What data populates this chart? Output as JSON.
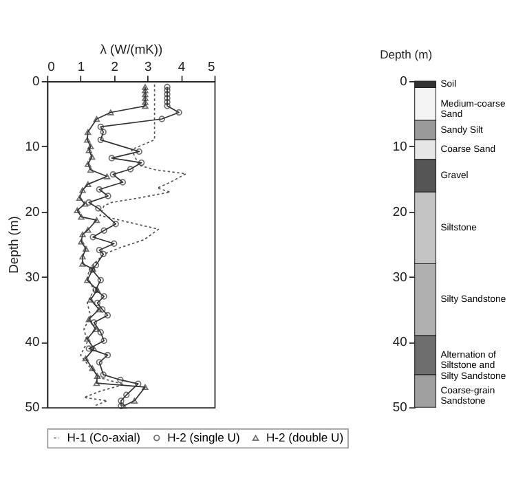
{
  "chart_data": [
    {
      "type": "line",
      "xlabel": "λ (W/(mK))",
      "ylabel": "Depth (m)",
      "xlim": [
        0,
        5
      ],
      "xticks": [
        0,
        1,
        2,
        3,
        4,
        5
      ],
      "ylim": [
        50,
        0
      ],
      "yticks": [
        0,
        10,
        20,
        30,
        40,
        50
      ],
      "grid": false,
      "legend": "bottom",
      "series": [
        {
          "name": "H-1 (Co-axial)",
          "color": "#555555",
          "marker": "none",
          "line_style": "dotted",
          "x": [
            3.21,
            3.21,
            3.21,
            2.52,
            2.75,
            3.24,
            4.15,
            3.68,
            3.29,
            3.68,
            2.75,
            1.93,
            1.7,
            1.58,
            3.33,
            2.9,
            2.2,
            1.7,
            1.3,
            1.2,
            1.4,
            1.2,
            1.3,
            1.1,
            1.2,
            1.0,
            1.3,
            1.6,
            2.3,
            1.6,
            1.1,
            1.8,
            1.4
          ],
          "values": [
            0.5,
            5,
            9.0,
            10.5,
            12.9,
            13.6,
            14.2,
            15.5,
            16.4,
            17.0,
            17.9,
            18.6,
            19.1,
            20.6,
            22.7,
            24.3,
            25.5,
            26.5,
            28.5,
            30,
            32,
            34,
            36,
            38,
            40,
            42,
            44,
            45.5,
            46.5,
            47.5,
            48.5,
            49,
            49.8
          ]
        },
        {
          "name": "H-2 (single U)",
          "color": "#333333",
          "marker": "circle",
          "line_style": "solid",
          "x": [
            3.59,
            3.59,
            3.59,
            3.59,
            3.59,
            3.59,
            3.94,
            3.43,
            1.6,
            1.68,
            1.6,
            2.75,
            1.93,
            2.82,
            2.49,
            1.97,
            2.26,
            1.56,
            1.82,
            1.25,
            1.53,
            2.05,
            1.7,
            1.37,
            2.0,
            1.56,
            1.68,
            1.46,
            1.34,
            1.6,
            1.45,
            1.7,
            1.5,
            1.65,
            1.81,
            1.4,
            1.6,
            1.7,
            1.25,
            1.81,
            1.56,
            1.68,
            2.19,
            2.72,
            2.37,
            2.21,
            2.21
          ],
          "values": [
            0.9,
            1.4,
            2.0,
            2.6,
            3.2,
            3.8,
            4.8,
            5.8,
            7.0,
            7.8,
            9.0,
            10.8,
            11.8,
            12.5,
            13.5,
            14.3,
            15.5,
            16.6,
            17.6,
            18.6,
            19.5,
            21.9,
            22.9,
            23.9,
            24.9,
            25.9,
            26.5,
            28.2,
            28.9,
            30.5,
            32,
            33,
            34,
            35,
            35.9,
            37,
            38.5,
            39.8,
            41,
            42,
            43.1,
            45,
            45.8,
            46.4,
            48.1,
            49.0,
            49.8
          ]
        },
        {
          "name": "H-2 (double U)",
          "color": "#333333",
          "marker": "triangle",
          "line_style": "solid",
          "x": [
            2.93,
            2.93,
            2.93,
            2.93,
            2.93,
            2.93,
            1.9,
            1.48,
            1.22,
            1.2,
            1.3,
            1.25,
            1.34,
            1.22,
            1.3,
            1.79,
            1.22,
            1.06,
            0.97,
            1.13,
            0.9,
            1.02,
            1.48,
            1.22,
            1.06,
            1.02,
            1.16,
            1.06,
            1.06,
            1.37,
            1.2,
            1.5,
            1.3,
            1.55,
            1.25,
            1.45,
            1.2,
            1.4,
            1.15,
            1.35,
            1.5,
            1.48,
            2.93,
            2.61,
            2.28
          ],
          "values": [
            0.9,
            1.4,
            2.0,
            2.6,
            3.2,
            3.8,
            4.8,
            5.8,
            7.8,
            9.0,
            10.0,
            10.6,
            11.6,
            12.7,
            13.6,
            14.6,
            15.8,
            16.7,
            17.9,
            18.8,
            19.8,
            20.8,
            21.3,
            22.8,
            23.5,
            24.6,
            25.7,
            26.9,
            28.0,
            28.8,
            30.5,
            32,
            33.5,
            35,
            36.5,
            38,
            39.5,
            41,
            42.5,
            44,
            45.2,
            46.3,
            46.9,
            49.0,
            49.8
          ]
        }
      ]
    },
    {
      "type": "bar",
      "stacked": true,
      "ylabel": "Depth (m)",
      "categories": [
        null
      ],
      "ylim": [
        50,
        0
      ],
      "yticks": [
        0,
        10,
        20,
        30,
        40,
        50
      ],
      "series": [
        {
          "name": "Soil",
          "color": "#333333",
          "values": [
            1
          ]
        },
        {
          "name": "Medium-coarse Sand",
          "color": "#f4f4f4",
          "values": [
            5
          ]
        },
        {
          "name": "Sandy Silt",
          "color": "#9a9a9a",
          "values": [
            3
          ]
        },
        {
          "name": "Coarse Sand",
          "color": "#e6e6e6",
          "values": [
            3
          ]
        },
        {
          "name": "Gravel",
          "color": "#555555",
          "values": [
            5
          ]
        },
        {
          "name": "Siltstone",
          "color": "#c4c4c4",
          "values": [
            11
          ]
        },
        {
          "name": "Silty Sandstone",
          "color": "#b0b0b0",
          "values": [
            11
          ]
        },
        {
          "name": "Alternation of Siltstone and Silty Sandstone",
          "color": "#6e6e6e",
          "values": [
            6
          ]
        },
        {
          "name": "Coarse-grain Sandstone",
          "color": "#a0a0a0",
          "values": [
            5
          ]
        }
      ]
    }
  ]
}
